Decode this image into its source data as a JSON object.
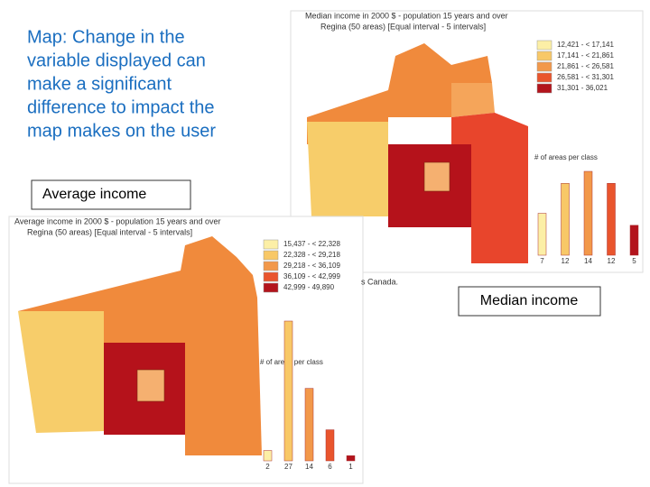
{
  "slide": {
    "heading_lines": [
      "Map: Change in the",
      "variable displayed can",
      "make a significant",
      "difference to impact the",
      "map makes on the user"
    ],
    "average_label": "Average income",
    "median_label": "Median income",
    "fragment": "s Canada."
  },
  "class_colors": [
    "#fcefa6",
    "#f8c867",
    "#f2984a",
    "#e9552d",
    "#b3141c"
  ],
  "median_map": {
    "title": "Median income in 2000 $ - population 15 years and over",
    "subtitle": "Regina (50 areas)  [Equal interval - 5 intervals]",
    "legend": [
      "12,421 - < 17,141",
      "17,141 - < 21,861",
      "21,861 - < 26,581",
      "26,581 - < 31,301",
      "31,301 - 36,021"
    ],
    "histogram": {
      "title": "# of areas per class",
      "counts": [
        7,
        12,
        14,
        12,
        5
      ]
    }
  },
  "average_map": {
    "title": "Average income in 2000 $ - population 15 years and over",
    "subtitle": "Regina (50 areas)  [Equal interval - 5 intervals]",
    "legend": [
      "15,437 - < 22,328",
      "22,328 - < 29,218",
      "29,218 - < 36,109",
      "36,109 - < 42,999",
      "42,999 - 49,890"
    ],
    "histogram": {
      "title": "# of areas per class",
      "counts": [
        2,
        27,
        14,
        6,
        1
      ]
    }
  }
}
